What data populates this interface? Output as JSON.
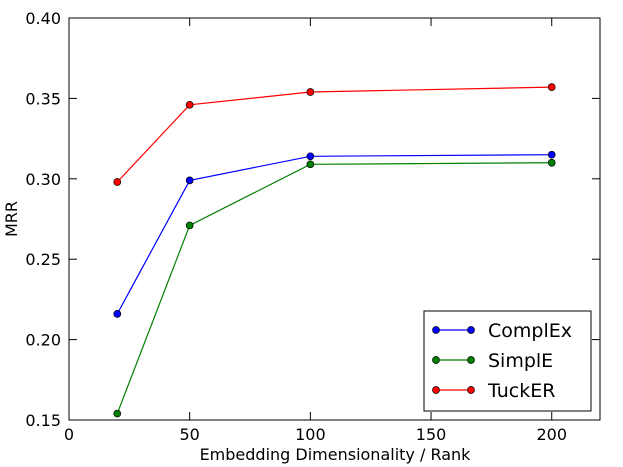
{
  "chart_data": {
    "type": "line",
    "xlabel": "Embedding Dimensionality / Rank",
    "ylabel": "MRR",
    "xlim": [
      0,
      220
    ],
    "ylim": [
      0.15,
      0.4
    ],
    "xticks": [
      0,
      50,
      100,
      150,
      200
    ],
    "xtick_labels": [
      "0",
      "50",
      "100",
      "150",
      "200"
    ],
    "yticks": [
      0.15,
      0.2,
      0.25,
      0.3,
      0.35,
      0.4
    ],
    "ytick_labels": [
      "0.15",
      "0.20",
      "0.25",
      "0.30",
      "0.35",
      "0.40"
    ],
    "grid": false,
    "legend_position": "bottom-right",
    "x": [
      20,
      50,
      100,
      200
    ],
    "series": [
      {
        "name": "ComplEx",
        "color": "#0000ff",
        "values": [
          0.216,
          0.299,
          0.314,
          0.315
        ]
      },
      {
        "name": "SimplE",
        "color": "#008000",
        "values": [
          0.154,
          0.271,
          0.309,
          0.31
        ]
      },
      {
        "name": "TuckER",
        "color": "#ff0000",
        "values": [
          0.298,
          0.346,
          0.354,
          0.357
        ]
      }
    ]
  }
}
